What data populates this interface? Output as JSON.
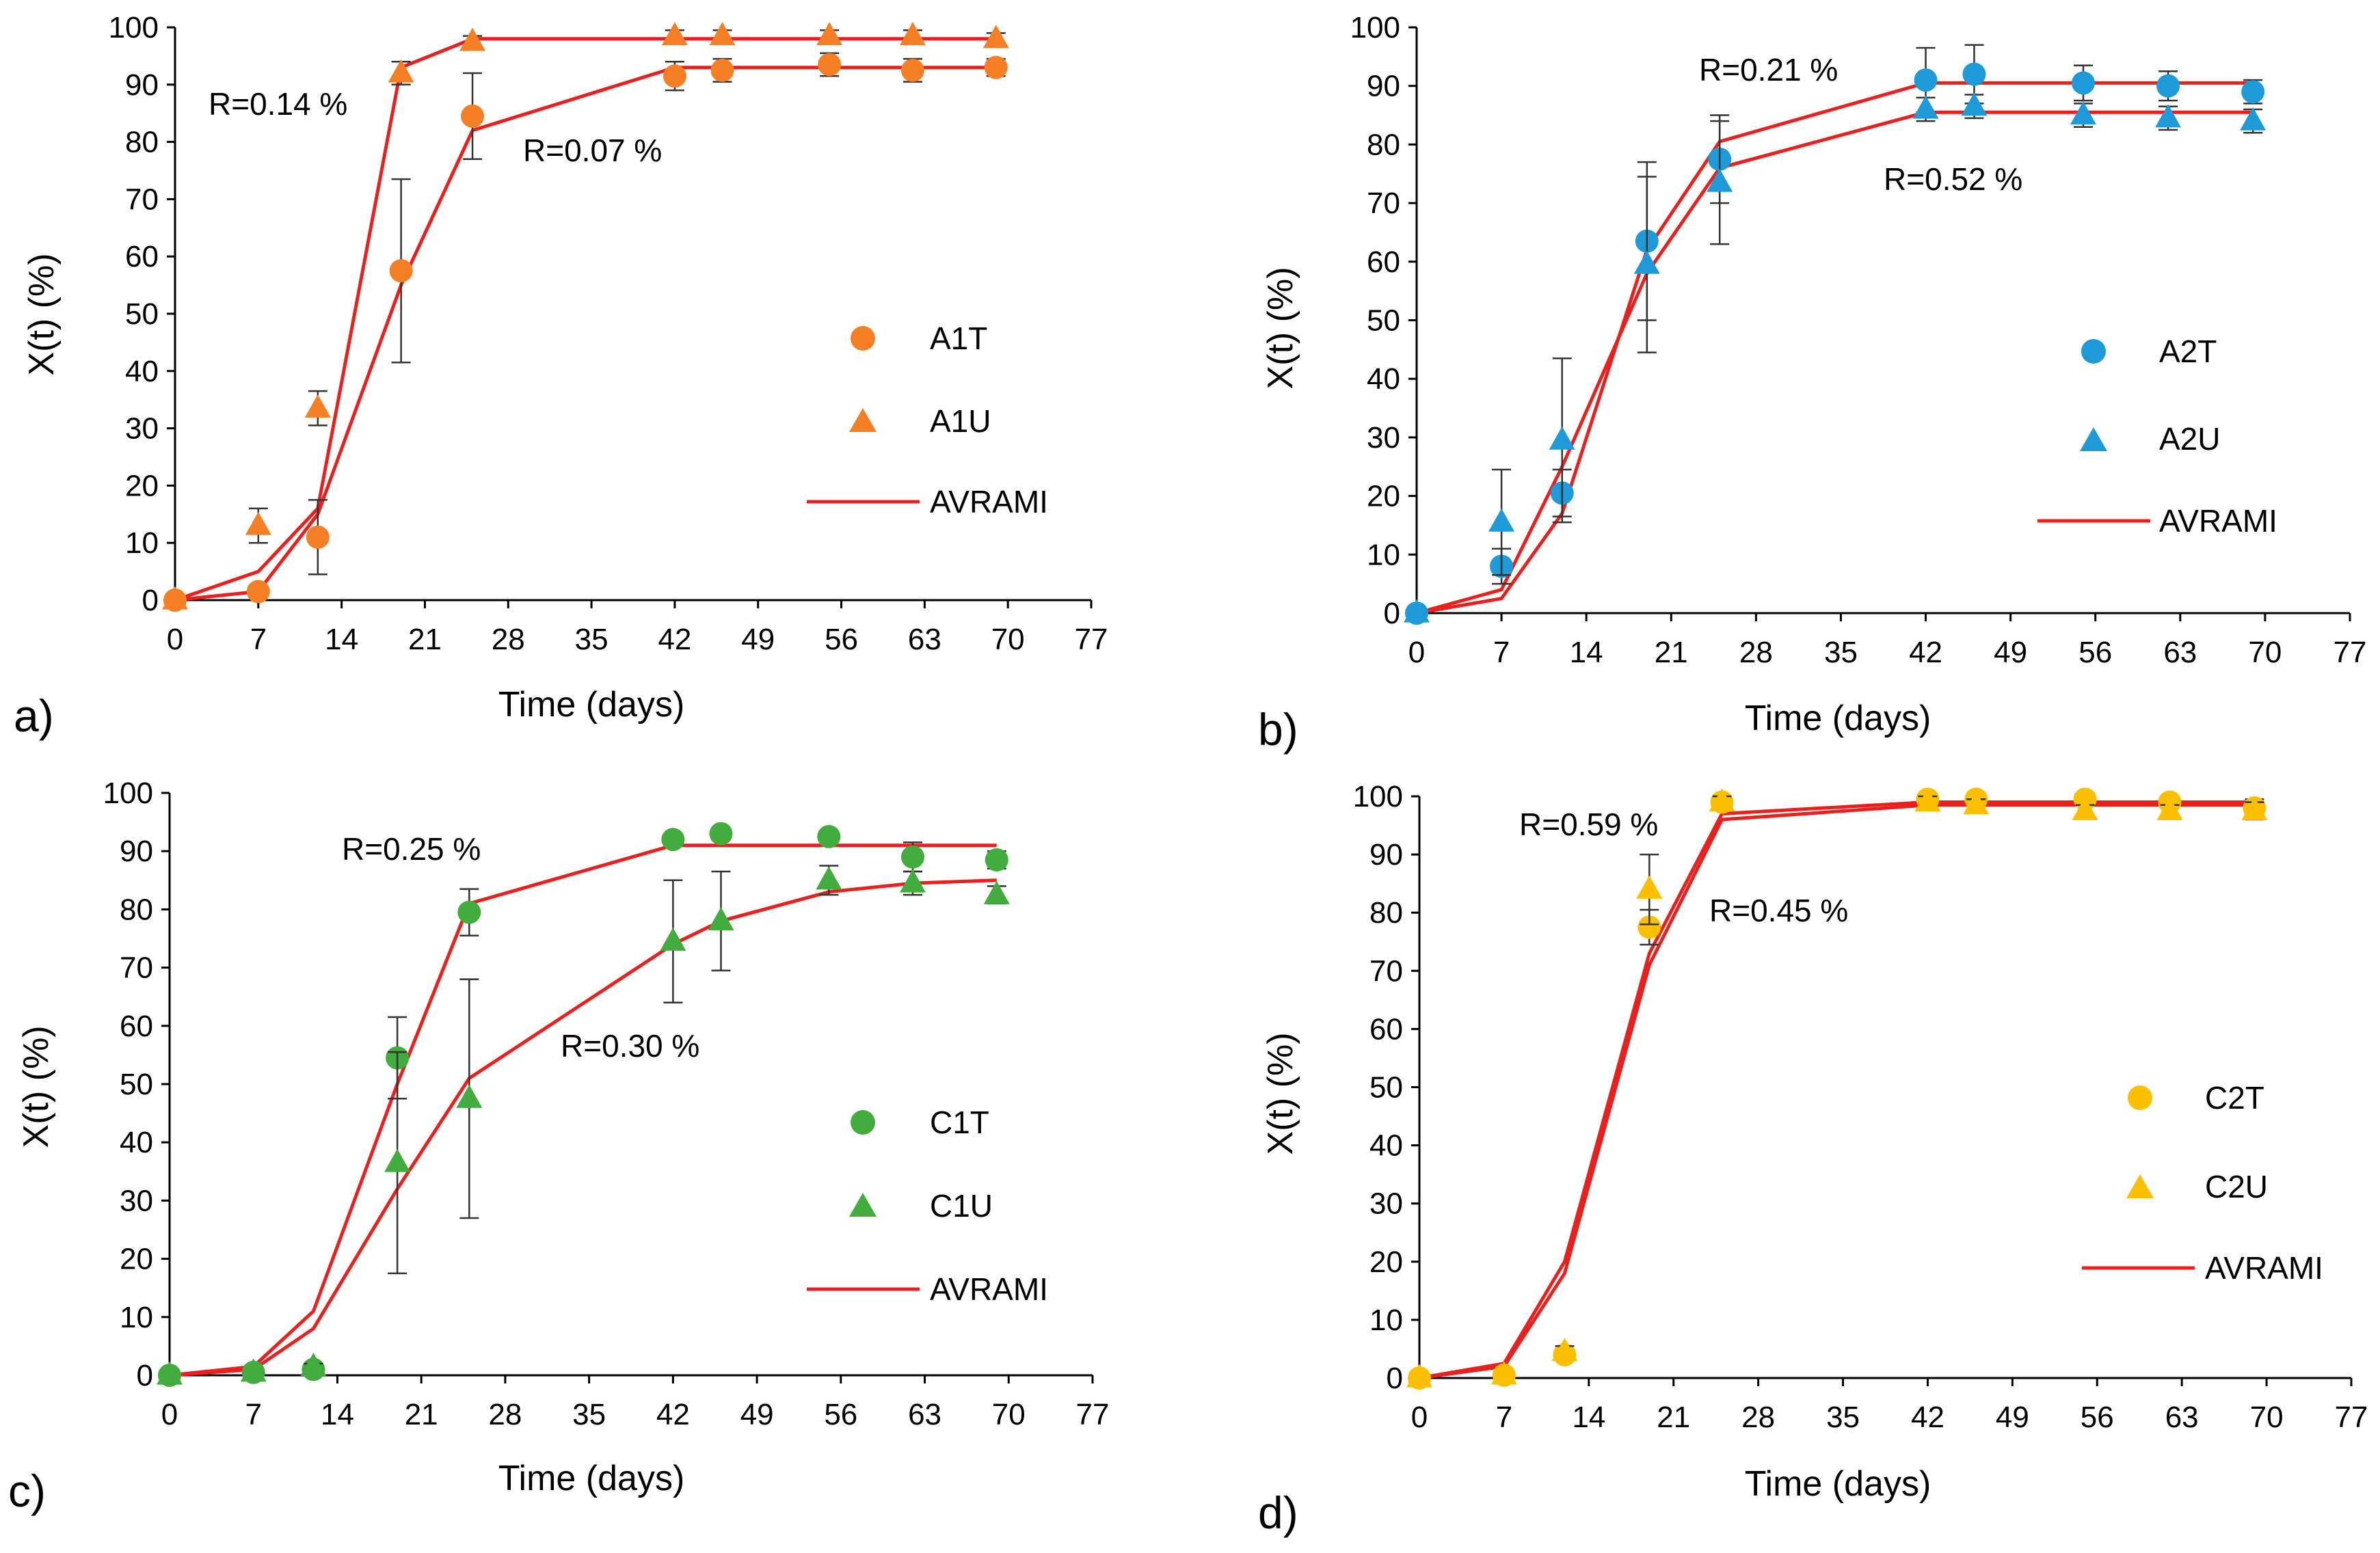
{
  "colors": {
    "fit": "#e8211f",
    "axis": "#000000",
    "errorbar": "#333333"
  },
  "chart_data": [
    {
      "type": "scatter",
      "panel_label": "a)",
      "xlabel": "Time (days)",
      "ylabel": "X(t) (%)",
      "xlim": [
        0,
        77
      ],
      "ylim": [
        0,
        100
      ],
      "xticks": [
        "0",
        "7",
        "14",
        "21",
        "28",
        "35",
        "42",
        "49",
        "56",
        "63",
        "70",
        "77"
      ],
      "yticks": [
        "0",
        "10",
        "20",
        "30",
        "40",
        "50",
        "60",
        "70",
        "80",
        "90",
        "100"
      ],
      "color": "#f47f24",
      "series": [
        {
          "name": "A1T",
          "marker": "circle",
          "x": [
            0,
            7,
            12,
            19,
            25,
            42,
            46,
            55,
            62,
            69
          ],
          "y": [
            0,
            1.5,
            11,
            57.5,
            84.5,
            91.5,
            92.5,
            93.5,
            92.5,
            93
          ],
          "err": [
            0,
            1,
            6.5,
            16,
            7.5,
            2.5,
            2,
            2,
            2,
            1.5
          ]
        },
        {
          "name": "A1U",
          "marker": "triangle",
          "x": [
            0,
            7,
            12,
            19,
            25,
            42,
            46,
            55,
            62,
            69
          ],
          "y": [
            0,
            13,
            33.5,
            92,
            97.5,
            98.5,
            98.5,
            98.5,
            98.5,
            98
          ],
          "err": [
            0,
            3,
            3,
            2,
            1,
            1,
            1,
            1,
            1,
            1
          ]
        }
      ],
      "fits": [
        {
          "name": "AVRAMI",
          "x": [
            0,
            7,
            12,
            19,
            25,
            42,
            46,
            55,
            62,
            69
          ],
          "y": [
            0,
            5,
            16,
            93,
            98,
            98,
            98,
            98,
            98,
            98
          ]
        },
        {
          "name": "AVRAMI",
          "x": [
            0,
            7,
            12,
            19,
            25,
            42,
            46,
            55,
            62,
            69
          ],
          "y": [
            0,
            1.5,
            15,
            55,
            82,
            93,
            93,
            93,
            93,
            93
          ]
        }
      ],
      "legend": [
        "A1T",
        "A1U",
        "AVRAMI"
      ],
      "annotations": [
        "R=0.14 %",
        "R=0.07 %"
      ]
    },
    {
      "type": "scatter",
      "panel_label": "b)",
      "xlabel": "Time (days)",
      "ylabel": "X(t) (%)",
      "xlim": [
        0,
        77
      ],
      "ylim": [
        0,
        100
      ],
      "xticks": [
        "0",
        "7",
        "14",
        "21",
        "28",
        "35",
        "42",
        "49",
        "56",
        "63",
        "70",
        "77"
      ],
      "yticks": [
        "0",
        "10",
        "20",
        "30",
        "40",
        "50",
        "60",
        "70",
        "80",
        "90",
        "100"
      ],
      "color": "#1f9ad8",
      "series": [
        {
          "name": "A2T",
          "marker": "circle",
          "x": [
            0,
            7,
            12,
            19,
            25,
            42,
            46,
            55,
            62,
            69
          ],
          "y": [
            0,
            8,
            20.5,
            63.5,
            77.5,
            91,
            92,
            90.5,
            90,
            89
          ],
          "err": [
            0,
            3,
            4,
            13.5,
            7.5,
            5.5,
            5,
            3,
            2.5,
            2
          ]
        },
        {
          "name": "A2U",
          "marker": "triangle",
          "x": [
            0,
            7,
            12,
            19,
            25,
            42,
            46,
            55,
            62,
            69
          ],
          "y": [
            0,
            15.5,
            29.5,
            59.5,
            73.5,
            86,
            86.5,
            85,
            84.5,
            84
          ],
          "err": [
            0,
            9,
            14,
            15,
            10.5,
            2,
            2,
            2,
            2,
            2
          ]
        }
      ],
      "fits": [
        {
          "name": "AVRAMI",
          "x": [
            0,
            7,
            12,
            19,
            25,
            42,
            46,
            55,
            62,
            69
          ],
          "y": [
            0,
            2.5,
            17,
            62,
            80.5,
            90.5,
            90.5,
            90.5,
            90.5,
            90.5
          ]
        },
        {
          "name": "AVRAMI",
          "x": [
            0,
            7,
            12,
            19,
            25,
            42,
            46,
            55,
            62,
            69
          ],
          "y": [
            0,
            4,
            25,
            58,
            76,
            85.5,
            85.5,
            85.5,
            85.5,
            85.5
          ]
        }
      ],
      "legend": [
        "A2T",
        "A2U",
        "AVRAMI"
      ],
      "annotations": [
        "R=0.21 %",
        "R=0.52 %"
      ]
    },
    {
      "type": "scatter",
      "panel_label": "c)",
      "xlabel": "Time (days)",
      "ylabel": "X(t) (%)",
      "xlim": [
        0,
        77
      ],
      "ylim": [
        0,
        100
      ],
      "xticks": [
        "0",
        "7",
        "14",
        "21",
        "28",
        "35",
        "42",
        "49",
        "56",
        "63",
        "70",
        "77"
      ],
      "yticks": [
        "0",
        "10",
        "20",
        "30",
        "40",
        "50",
        "60",
        "70",
        "80",
        "90",
        "100"
      ],
      "color": "#43ac3f",
      "series": [
        {
          "name": "C1T",
          "marker": "circle",
          "x": [
            0,
            7,
            12,
            19,
            25,
            42,
            46,
            55,
            62,
            69
          ],
          "y": [
            0,
            0.5,
            1,
            54.5,
            79.5,
            92,
            93,
            92.5,
            89,
            88.5
          ],
          "err": [
            0,
            0,
            0.5,
            7,
            4,
            1,
            1,
            1,
            2.5,
            1.5
          ]
        },
        {
          "name": "C1U",
          "marker": "triangle",
          "x": [
            0,
            7,
            12,
            19,
            25,
            42,
            46,
            55,
            62,
            69
          ],
          "y": [
            0,
            0.5,
            1.5,
            36.5,
            47.5,
            74.5,
            78,
            85,
            84.5,
            82.5
          ],
          "err": [
            0,
            0,
            0.5,
            19,
            20.5,
            10.5,
            8.5,
            2.5,
            2,
            1.5
          ]
        }
      ],
      "fits": [
        {
          "name": "AVRAMI",
          "x": [
            0,
            7,
            12,
            19,
            25,
            42,
            46,
            55,
            62,
            69
          ],
          "y": [
            0,
            1.5,
            11,
            50,
            81,
            91,
            91,
            91,
            91,
            91
          ]
        },
        {
          "name": "AVRAMI",
          "x": [
            0,
            7,
            12,
            19,
            25,
            42,
            46,
            55,
            62,
            69
          ],
          "y": [
            0,
            1,
            8,
            32,
            51,
            74,
            78,
            83,
            84.5,
            85
          ]
        }
      ],
      "legend": [
        "C1T",
        "C1U",
        "AVRAMI"
      ],
      "annotations": [
        "R=0.25 %",
        "R=0.30 %"
      ]
    },
    {
      "type": "scatter",
      "panel_label": "d)",
      "xlabel": "Time (days)",
      "ylabel": "X(t) (%)",
      "xlim": [
        0,
        77
      ],
      "ylim": [
        0,
        100
      ],
      "xticks": [
        "0",
        "7",
        "14",
        "21",
        "28",
        "35",
        "42",
        "49",
        "56",
        "63",
        "70",
        "77"
      ],
      "yticks": [
        "0",
        "10",
        "20",
        "30",
        "40",
        "50",
        "60",
        "70",
        "80",
        "90",
        "100"
      ],
      "color": "#fcbf00",
      "series": [
        {
          "name": "C2T",
          "marker": "circle",
          "x": [
            0,
            7,
            12,
            19,
            25,
            42,
            46,
            55,
            62,
            69
          ],
          "y": [
            0,
            0.5,
            4,
            77.5,
            99,
            99.5,
            99.5,
            99.5,
            99,
            98
          ],
          "err": [
            0,
            0,
            1,
            3,
            1,
            1,
            1,
            1,
            1,
            1.5
          ]
        },
        {
          "name": "C2U",
          "marker": "triangle",
          "x": [
            0,
            7,
            12,
            19,
            25,
            42,
            46,
            55,
            62,
            69
          ],
          "y": [
            0,
            0.5,
            4.5,
            84,
            99,
            99,
            98.5,
            97.5,
            97.5,
            97.5
          ],
          "err": [
            0,
            0,
            1,
            6,
            1,
            1,
            1,
            1,
            1,
            1.5
          ]
        }
      ],
      "fits": [
        {
          "name": "AVRAMI",
          "x": [
            0,
            7,
            12,
            19,
            25,
            42,
            46,
            55,
            62,
            69
          ],
          "y": [
            0,
            2.5,
            20,
            73,
            97,
            99,
            99,
            99,
            99,
            99
          ]
        },
        {
          "name": "AVRAMI",
          "x": [
            0,
            7,
            12,
            19,
            25,
            42,
            46,
            55,
            62,
            69
          ],
          "y": [
            0,
            2,
            18,
            71,
            96,
            98.5,
            98.5,
            98.5,
            98.5,
            98.5
          ]
        }
      ],
      "legend": [
        "C2T",
        "C2U",
        "AVRAMI"
      ],
      "annotations": [
        "R=0.59 %",
        "R=0.45 %"
      ]
    }
  ]
}
